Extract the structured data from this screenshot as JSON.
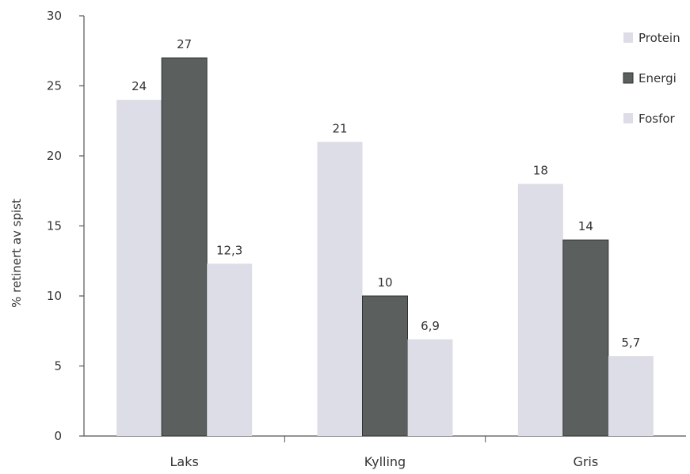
{
  "chart_data": {
    "type": "bar",
    "title": "",
    "xlabel": "",
    "ylabel": "% retinert av spist",
    "categories": [
      "Laks",
      "Kylling",
      "Gris"
    ],
    "series": [
      {
        "name": "Protein",
        "color": "#dcdde6",
        "values": [
          24,
          21,
          18
        ],
        "labels": [
          "24",
          "21",
          "18"
        ]
      },
      {
        "name": "Energi",
        "color": "#5b5f5e",
        "values": [
          27,
          10,
          14
        ],
        "labels": [
          "27",
          "10",
          "14"
        ]
      },
      {
        "name": "Fosfor",
        "color": "#dcdde6",
        "values": [
          12.3,
          6.9,
          5.7
        ],
        "labels": [
          "12,3",
          "6,9",
          "5,7"
        ]
      }
    ],
    "ylim": [
      0,
      30
    ],
    "yticks": [
      0,
      5,
      10,
      15,
      20,
      25,
      30
    ],
    "ytick_labels": [
      "0",
      "5",
      "10",
      "15",
      "20",
      "25",
      "30"
    ],
    "grid": false,
    "legend": {
      "position": "top-right"
    }
  }
}
